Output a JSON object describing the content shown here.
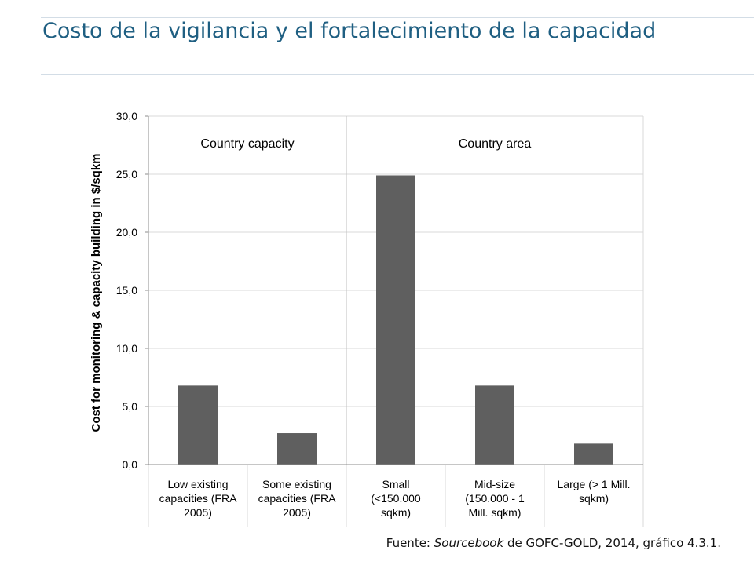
{
  "slide": {
    "title": "Costo de la vigilancia y el fortalecimiento de la capacidad",
    "source": {
      "prefix": "Fuente: ",
      "italic": "Sourcebook",
      "suffix": " de GOFC-GOLD, 2014, gráfico 4.3.1."
    }
  },
  "chart_data": {
    "type": "bar",
    "categories": [
      [
        "Low existing",
        "capacities (FRA",
        "2005)"
      ],
      [
        "Some existing",
        "capacities (FRA",
        "2005)"
      ],
      [
        "Small",
        "(<150.000",
        "sqkm)"
      ],
      [
        "Mid-size",
        "(150.000 - 1",
        "Mill. sqkm)"
      ],
      [
        "Large (> 1 Mill.",
        "sqkm)"
      ]
    ],
    "values": [
      6.8,
      2.7,
      24.9,
      6.8,
      1.8
    ],
    "ylabel": "Cost for monitoring & capacity building in $/sqkm",
    "ylim": [
      0,
      30
    ],
    "yticks": [
      0,
      5,
      10,
      15,
      20,
      25,
      30
    ],
    "ytick_labels": [
      "0,0",
      "5,0",
      "10,0",
      "15,0",
      "20,0",
      "25,0",
      "30,0"
    ],
    "groups": [
      {
        "label": "Country capacity",
        "categories": [
          0,
          1
        ]
      },
      {
        "label": "Country area",
        "categories": [
          2,
          3,
          4
        ]
      }
    ],
    "bar_color": "#5f5f5f",
    "grid": true,
    "legend": "none"
  }
}
